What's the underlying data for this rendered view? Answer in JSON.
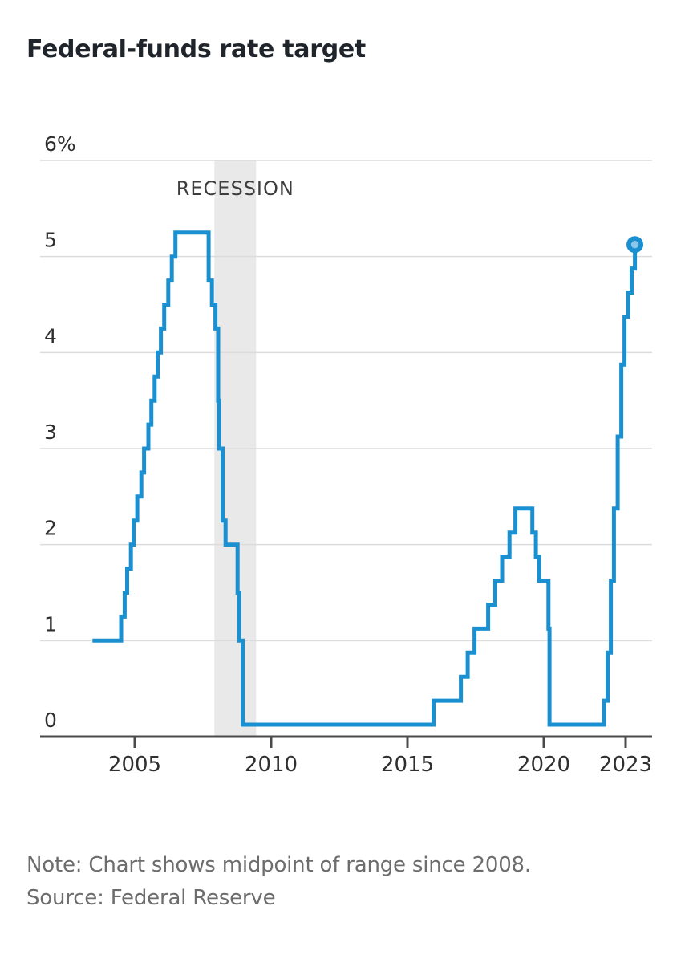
{
  "header": {
    "title": "Federal-funds rate target"
  },
  "footer": {
    "note": "Note: Chart shows midpoint of range since 2008.",
    "source": "Source: Federal Reserve"
  },
  "chart_data": {
    "type": "line",
    "line_style": "step-after",
    "title": "Federal-funds rate target",
    "xlabel": "",
    "ylabel": "",
    "unit": "percent",
    "ylim": [
      0,
      6
    ],
    "xlim": [
      2001.5,
      2024
    ],
    "grid": "horizontal",
    "legend": "none",
    "yticks": [
      {
        "value": 6,
        "label": "6%"
      },
      {
        "value": 5,
        "label": "5"
      },
      {
        "value": 4,
        "label": "4"
      },
      {
        "value": 3,
        "label": "3"
      },
      {
        "value": 2,
        "label": "2"
      },
      {
        "value": 1,
        "label": "1"
      },
      {
        "value": 0,
        "label": "0"
      }
    ],
    "xticks": [
      {
        "value": 2005,
        "label": "2005"
      },
      {
        "value": 2010,
        "label": "2010"
      },
      {
        "value": 2015,
        "label": "2015"
      },
      {
        "value": 2020,
        "label": "2020"
      },
      {
        "value": 2023,
        "label": "2023"
      }
    ],
    "recession_band": {
      "start": 2007.92,
      "end": 2009.45,
      "label": "RECESSION"
    },
    "series": [
      {
        "name": "Federal-funds rate target (midpoint of range since 2008)",
        "points": [
          [
            2003.45,
            1.0
          ],
          [
            2004.5,
            1.25
          ],
          [
            2004.63,
            1.5
          ],
          [
            2004.72,
            1.75
          ],
          [
            2004.86,
            2.0
          ],
          [
            2004.96,
            2.25
          ],
          [
            2005.09,
            2.5
          ],
          [
            2005.24,
            2.75
          ],
          [
            2005.34,
            3.0
          ],
          [
            2005.5,
            3.25
          ],
          [
            2005.61,
            3.5
          ],
          [
            2005.73,
            3.75
          ],
          [
            2005.84,
            4.0
          ],
          [
            2005.96,
            4.25
          ],
          [
            2006.08,
            4.5
          ],
          [
            2006.23,
            4.75
          ],
          [
            2006.36,
            5.0
          ],
          [
            2006.49,
            5.25
          ],
          [
            2007.71,
            4.75
          ],
          [
            2007.83,
            4.5
          ],
          [
            2007.96,
            4.25
          ],
          [
            2008.06,
            3.5
          ],
          [
            2008.09,
            3.0
          ],
          [
            2008.22,
            2.25
          ],
          [
            2008.33,
            2.0
          ],
          [
            2008.77,
            1.5
          ],
          [
            2008.83,
            1.0
          ],
          [
            2008.96,
            0.125
          ],
          [
            2015.96,
            0.375
          ],
          [
            2016.96,
            0.625
          ],
          [
            2017.21,
            0.875
          ],
          [
            2017.46,
            1.125
          ],
          [
            2017.96,
            1.375
          ],
          [
            2018.22,
            1.625
          ],
          [
            2018.47,
            1.875
          ],
          [
            2018.74,
            2.125
          ],
          [
            2018.96,
            2.375
          ],
          [
            2019.58,
            2.125
          ],
          [
            2019.71,
            1.875
          ],
          [
            2019.83,
            1.625
          ],
          [
            2020.17,
            1.125
          ],
          [
            2020.21,
            0.125
          ],
          [
            2022.21,
            0.375
          ],
          [
            2022.34,
            0.875
          ],
          [
            2022.46,
            1.625
          ],
          [
            2022.57,
            2.375
          ],
          [
            2022.71,
            3.125
          ],
          [
            2022.84,
            3.875
          ],
          [
            2022.96,
            4.375
          ],
          [
            2023.09,
            4.625
          ],
          [
            2023.22,
            4.875
          ],
          [
            2023.34,
            5.125
          ]
        ]
      }
    ],
    "end_marker": {
      "x": 2023.34,
      "y": 5.125
    },
    "colors": {
      "line": "#1b90d0",
      "marker_fill": "#8cc6e9",
      "recession_band": "#e9e9e9",
      "grid": "#dcdcdc",
      "axis": "#4b4b4b",
      "tick_label": "#2f2f2f",
      "recession_label": "#3d3d3d",
      "title": "#20252b",
      "note": "#6d6d6d"
    }
  }
}
